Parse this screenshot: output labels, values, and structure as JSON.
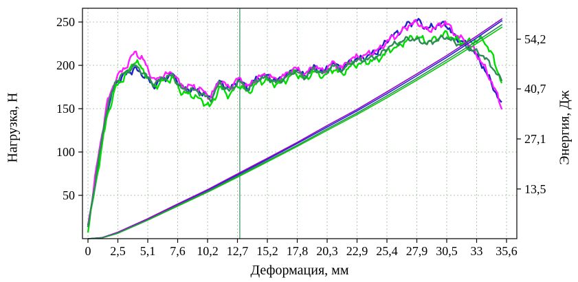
{
  "chart_data": {
    "type": "line",
    "title": "",
    "xlabel": "Деформация, мм",
    "ylabel_left": "Нагрузка, Н",
    "ylabel_right": "Энергия, Дж",
    "x_axis": {
      "min": 0,
      "max": 35.56,
      "ticks": [
        0,
        2.54,
        5.08,
        7.62,
        10.16,
        12.7,
        15.24,
        17.78,
        20.32,
        22.86,
        25.4,
        27.94,
        30.48,
        33.02,
        35.56
      ],
      "tick_labels": [
        "0",
        "2,5",
        "5,1",
        "7,6",
        "10,2",
        "12,7",
        "15,2",
        "17,8",
        "20,3",
        "22,9",
        "25,4",
        "27,9",
        "30,5",
        "33",
        "35,6"
      ]
    },
    "y_axis_left": {
      "min": 0,
      "max": 265,
      "ticks": [
        50,
        100,
        150,
        200,
        250
      ],
      "tick_labels": [
        "50",
        "100",
        "150",
        "200",
        "250"
      ]
    },
    "y_axis_right": {
      "min": 0,
      "max": 58,
      "ticks": [
        13.5,
        27.1,
        40.7,
        54.2
      ],
      "tick_labels": [
        "13,5",
        "27,1",
        "40,7",
        "54,2"
      ]
    },
    "grid": {
      "show": true,
      "color": "#aec6ae",
      "dash": "2,3"
    },
    "frame_color": "#000000",
    "cursor_line": {
      "x": 12.9,
      "color": "#2e8b57"
    },
    "load_series": {
      "x_start": 0,
      "x_step": 0.8,
      "series": [
        {
          "name": "load-1",
          "color": "#2020c8",
          "noise": 5,
          "values": [
            12,
            80,
            148,
            180,
            190,
            196,
            188,
            176,
            184,
            190,
            174,
            172,
            170,
            162,
            182,
            172,
            184,
            174,
            186,
            188,
            182,
            188,
            196,
            188,
            198,
            192,
            202,
            196,
            206,
            208,
            212,
            218,
            232,
            238,
            248,
            252,
            242,
            246,
            248,
            232,
            226,
            216,
            198,
            176,
            152
          ]
        },
        {
          "name": "load-2",
          "color": "#ff1aff",
          "noise": 5,
          "values": [
            14,
            88,
            155,
            186,
            198,
            216,
            204,
            182,
            188,
            192,
            175,
            176,
            172,
            163,
            183,
            174,
            185,
            175,
            186,
            189,
            183,
            189,
            197,
            189,
            199,
            193,
            203,
            197,
            208,
            210,
            214,
            219,
            230,
            236,
            246,
            250,
            240,
            244,
            250,
            236,
            228,
            218,
            200,
            178,
            150
          ]
        },
        {
          "name": "load-3",
          "color": "#00dd00",
          "noise": 5,
          "values": [
            10,
            75,
            140,
            176,
            188,
            206,
            192,
            175,
            182,
            185,
            168,
            166,
            160,
            152,
            175,
            165,
            178,
            168,
            180,
            183,
            178,
            183,
            192,
            183,
            193,
            187,
            196,
            190,
            200,
            202,
            205,
            208,
            218,
            222,
            230,
            233,
            227,
            231,
            237,
            230,
            226,
            228,
            230,
            210,
            178
          ]
        },
        {
          "name": "load-4",
          "color": "#2e8b57",
          "noise": 4,
          "values": [
            12,
            82,
            150,
            183,
            192,
            200,
            190,
            178,
            186,
            188,
            172,
            172,
            168,
            160,
            180,
            170,
            182,
            172,
            184,
            186,
            180,
            186,
            194,
            186,
            196,
            190,
            200,
            194,
            204,
            206,
            208,
            212,
            222,
            226,
            231,
            229,
            225,
            229,
            233,
            226,
            222,
            217,
            211,
            197,
            181
          ]
        }
      ]
    },
    "energy_series": {
      "x": [
        0,
        1.2,
        2.5,
        5,
        7.6,
        10.2,
        12.7,
        15.2,
        17.8,
        20.3,
        22.9,
        25.4,
        27.9,
        30.5,
        33,
        35.2
      ],
      "series": [
        {
          "name": "energy-1",
          "color": "#2222cc",
          "values": [
            0,
            0.3,
            1.6,
            5.2,
            9.2,
            13.2,
            17.3,
            21.5,
            25.9,
            30.3,
            34.8,
            39.4,
            44.2,
            49.3,
            54.5,
            59.3
          ]
        },
        {
          "name": "energy-2",
          "color": "#9900cc",
          "values": [
            0,
            0.3,
            1.7,
            5.3,
            9.4,
            13.4,
            17.6,
            21.8,
            26.2,
            30.7,
            35.2,
            39.9,
            44.7,
            49.8,
            55.0,
            59.8
          ]
        },
        {
          "name": "energy-3",
          "color": "#00cc00",
          "values": [
            0,
            0.2,
            1.4,
            4.9,
            8.8,
            12.7,
            16.7,
            20.8,
            25.1,
            29.4,
            33.8,
            38.3,
            43.0,
            48.0,
            53.0,
            57.5
          ]
        },
        {
          "name": "energy-4",
          "color": "#2e8b57",
          "values": [
            0,
            0.25,
            1.5,
            5.0,
            9.0,
            12.9,
            17.0,
            21.1,
            25.4,
            29.8,
            34.2,
            38.8,
            43.5,
            48.6,
            53.6,
            58.2
          ]
        }
      ]
    }
  }
}
